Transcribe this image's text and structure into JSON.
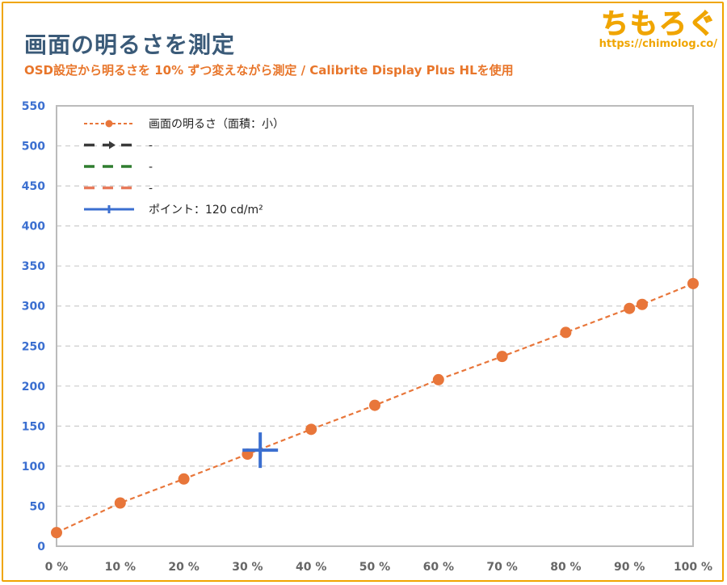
{
  "header": {
    "title": "画面の明るさを測定",
    "subtitle": "OSD設定から明るさを 10% ずつ変えながら測定 / Calibrite Display Plus HLを使用"
  },
  "brand": {
    "logo_text": "ちもろぐ",
    "url": "https://chimolog.co/"
  },
  "chart_data": {
    "type": "line",
    "title": "画面の明るさを測定",
    "subtitle": "OSD設定から明るさを 10% ずつ変えながら測定 / Calibrite Display Plus HLを使用",
    "xlim": [
      0,
      100
    ],
    "ylim": [
      0,
      550
    ],
    "x_ticks": [
      0,
      10,
      20,
      30,
      40,
      50,
      60,
      70,
      80,
      90,
      100
    ],
    "x_tick_labels": [
      "0 %",
      "10 %",
      "20 %",
      "30 %",
      "40 %",
      "50 %",
      "60 %",
      "70 %",
      "80 %",
      "90 %",
      "100 %"
    ],
    "y_ticks": [
      0,
      50,
      100,
      150,
      200,
      250,
      300,
      350,
      400,
      450,
      500,
      550
    ],
    "y_tick_labels": [
      "0",
      "50",
      "100",
      "150",
      "200",
      "250",
      "300",
      "350",
      "400",
      "450",
      "500",
      "550"
    ],
    "grid": true,
    "legend_position": "top-left",
    "series": [
      {
        "name": "画面の明るさ（面積：小）",
        "color": "#e8763a",
        "style": "dashed-with-markers",
        "x": [
          0,
          10,
          20,
          30,
          40,
          50,
          60,
          70,
          80,
          90,
          92,
          100
        ],
        "y": [
          17,
          54,
          84,
          115,
          146,
          176,
          208,
          237,
          267,
          297,
          302,
          328
        ]
      },
      {
        "name": "-",
        "color": "#3a3a3a",
        "style": "dashed-with-arrow",
        "x": [],
        "y": []
      },
      {
        "name": "-",
        "color": "#2f7d2f",
        "style": "dashed",
        "x": [],
        "y": []
      },
      {
        "name": "-",
        "color": "#e87a5a",
        "style": "dashed",
        "x": [],
        "y": []
      },
      {
        "name": "ポイント：120 cd/m²",
        "color": "#3b6fd0",
        "style": "cross-marker",
        "x": [
          32
        ],
        "y": [
          120
        ]
      }
    ]
  }
}
